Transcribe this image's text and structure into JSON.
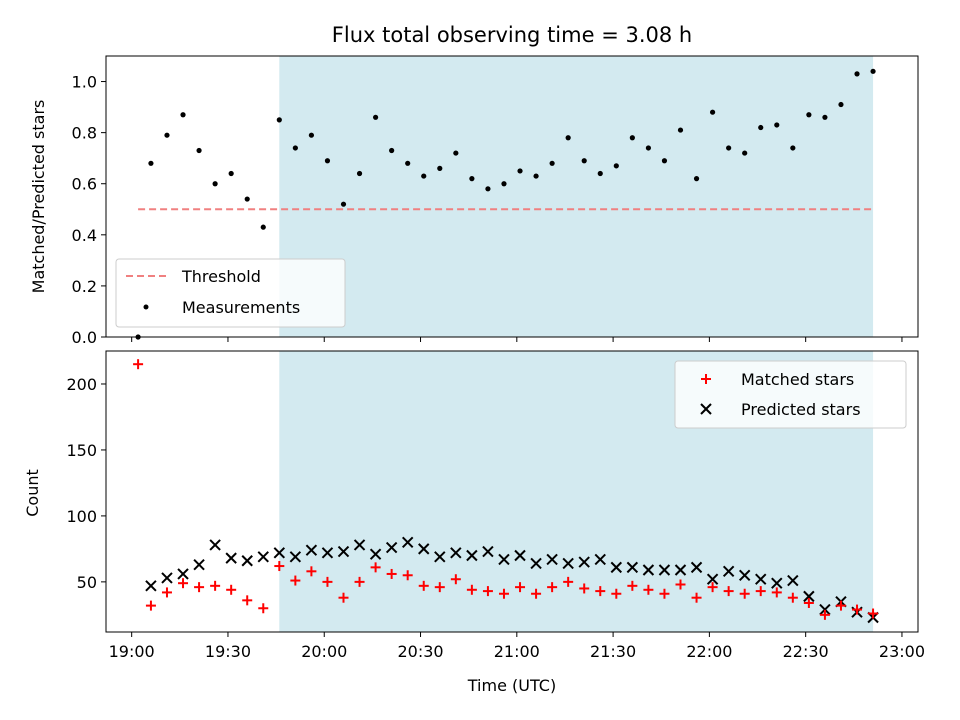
{
  "chart_data": [
    {
      "type": "scatter",
      "title": "Flux total observing time = 3.08 h",
      "xlabel": "",
      "ylabel": "Matched/Predicted stars",
      "xlim": [
        "18:52",
        "23:05"
      ],
      "ylim": [
        0,
        1.1
      ],
      "yticks": [
        0.0,
        0.2,
        0.4,
        0.6,
        0.8,
        1.0
      ],
      "ytick_labels": [
        "0.0",
        "0.2",
        "0.4",
        "0.6",
        "0.8",
        "1.0"
      ],
      "highlight_span": [
        "19:46",
        "22:51"
      ],
      "highlight_color": "#d3eaf0",
      "legend_position": "lower-left",
      "series": [
        {
          "name": "Threshold",
          "kind": "dashed-line",
          "color": "#f08080",
          "x": [
            "19:02",
            "22:51"
          ],
          "y": [
            0.5,
            0.5
          ]
        },
        {
          "name": "Measurements",
          "kind": "dot",
          "color": "#000000",
          "x": [
            "19:02",
            "19:06",
            "19:11",
            "19:16",
            "19:21",
            "19:26",
            "19:31",
            "19:36",
            "19:41",
            "19:46",
            "19:51",
            "19:56",
            "20:01",
            "20:06",
            "20:11",
            "20:16",
            "20:21",
            "20:26",
            "20:31",
            "20:36",
            "20:41",
            "20:46",
            "20:51",
            "20:56",
            "21:01",
            "21:06",
            "21:11",
            "21:16",
            "21:21",
            "21:26",
            "21:31",
            "21:36",
            "21:41",
            "21:46",
            "21:51",
            "21:56",
            "22:01",
            "22:06",
            "22:11",
            "22:16",
            "22:21",
            "22:26",
            "22:31",
            "22:36",
            "22:41",
            "22:46",
            "22:51"
          ],
          "y": [
            0.0,
            0.68,
            0.79,
            0.87,
            0.73,
            0.6,
            0.64,
            0.54,
            0.43,
            0.85,
            0.74,
            0.79,
            0.69,
            0.52,
            0.64,
            0.86,
            0.73,
            0.68,
            0.63,
            0.66,
            0.72,
            0.62,
            0.58,
            0.6,
            0.65,
            0.63,
            0.68,
            0.78,
            0.69,
            0.64,
            0.67,
            0.78,
            0.74,
            0.69,
            0.81,
            0.62,
            0.88,
            0.74,
            0.72,
            0.82,
            0.83,
            0.74,
            0.87,
            0.86,
            0.91,
            1.03,
            1.04
          ]
        }
      ]
    },
    {
      "type": "scatter",
      "xlabel": "Time (UTC)",
      "ylabel": "Count",
      "xlim": [
        "18:52",
        "23:05"
      ],
      "ylim": [
        12,
        225
      ],
      "xticks": [
        "19:00",
        "19:30",
        "20:00",
        "20:30",
        "21:00",
        "21:30",
        "22:00",
        "22:30",
        "23:00"
      ],
      "yticks": [
        50,
        100,
        150,
        200
      ],
      "ytick_labels": [
        "50",
        "100",
        "150",
        "200"
      ],
      "highlight_span": [
        "19:46",
        "22:51"
      ],
      "highlight_color": "#d3eaf0",
      "legend_position": "upper-right",
      "series": [
        {
          "name": "Matched stars",
          "kind": "plus",
          "color": "#ff0000",
          "x": [
            "19:02",
            "19:06",
            "19:11",
            "19:16",
            "19:21",
            "19:26",
            "19:31",
            "19:36",
            "19:41",
            "19:46",
            "19:51",
            "19:56",
            "20:01",
            "20:06",
            "20:11",
            "20:16",
            "20:21",
            "20:26",
            "20:31",
            "20:36",
            "20:41",
            "20:46",
            "20:51",
            "20:56",
            "21:01",
            "21:06",
            "21:11",
            "21:16",
            "21:21",
            "21:26",
            "21:31",
            "21:36",
            "21:41",
            "21:46",
            "21:51",
            "21:56",
            "22:01",
            "22:06",
            "22:11",
            "22:16",
            "22:21",
            "22:26",
            "22:31",
            "22:36",
            "22:41",
            "22:46",
            "22:51"
          ],
          "y": [
            215,
            32,
            42,
            49,
            46,
            47,
            44,
            36,
            30,
            62,
            51,
            58,
            50,
            38,
            50,
            61,
            56,
            55,
            47,
            46,
            52,
            44,
            43,
            41,
            46,
            41,
            46,
            50,
            45,
            43,
            41,
            47,
            44,
            41,
            48,
            38,
            46,
            43,
            41,
            43,
            42,
            38,
            34,
            25,
            32,
            29,
            26
          ]
        },
        {
          "name": "Predicted stars",
          "kind": "x",
          "color": "#000000",
          "x": [
            "19:06",
            "19:11",
            "19:16",
            "19:21",
            "19:26",
            "19:31",
            "19:36",
            "19:41",
            "19:46",
            "19:51",
            "19:56",
            "20:01",
            "20:06",
            "20:11",
            "20:16",
            "20:21",
            "20:26",
            "20:31",
            "20:36",
            "20:41",
            "20:46",
            "20:51",
            "20:56",
            "21:01",
            "21:06",
            "21:11",
            "21:16",
            "21:21",
            "21:26",
            "21:31",
            "21:36",
            "21:41",
            "21:46",
            "21:51",
            "21:56",
            "22:01",
            "22:06",
            "22:11",
            "22:16",
            "22:21",
            "22:26",
            "22:31",
            "22:36",
            "22:41",
            "22:46",
            "22:51"
          ],
          "y": [
            47,
            53,
            56,
            63,
            78,
            68,
            66,
            69,
            72,
            69,
            74,
            72,
            73,
            78,
            71,
            76,
            80,
            75,
            69,
            72,
            70,
            73,
            67,
            70,
            64,
            67,
            64,
            65,
            67,
            61,
            61,
            59,
            59,
            59,
            61,
            52,
            58,
            55,
            52,
            49,
            51,
            39,
            29,
            35,
            27,
            23
          ]
        }
      ]
    }
  ]
}
